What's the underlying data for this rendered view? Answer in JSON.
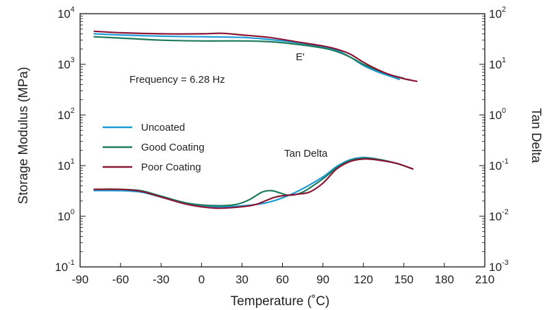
{
  "chart_data": {
    "type": "line",
    "xlabel": "Temperature (˚C)",
    "ylabel_left": "Storage Modulus (MPa)",
    "ylabel_right": "Tan Delta",
    "xlim": [
      -90,
      210
    ],
    "ylim_left": [
      0.1,
      10000
    ],
    "ylim_right": [
      0.001,
      100
    ],
    "y_scale": "log",
    "grid": false,
    "x_ticks": [
      "-90",
      "-60",
      "-30",
      "0",
      "30",
      "60",
      "90",
      "120",
      "150",
      "180",
      "210"
    ],
    "y_left_ticks": [
      {
        "base": "10",
        "exp": "4"
      },
      {
        "base": "10",
        "exp": "3"
      },
      {
        "base": "10",
        "exp": "2"
      },
      {
        "base": "10",
        "exp": "1"
      },
      {
        "base": "10",
        "exp": "0"
      },
      {
        "base": "10",
        "exp": "-1"
      }
    ],
    "y_right_ticks": [
      {
        "base": "10",
        "exp": "2"
      },
      {
        "base": "10",
        "exp": "1"
      },
      {
        "base": "10",
        "exp": "0"
      },
      {
        "base": "10",
        "exp": "-1"
      },
      {
        "base": "10",
        "exp": "-2"
      },
      {
        "base": "10",
        "exp": "-3"
      }
    ],
    "annotations": [
      "Frequency = 6.28 Hz",
      "E'",
      "Tan Delta"
    ],
    "legend": {
      "placement": "left-middle"
    },
    "series": [
      {
        "name": "Uncoated",
        "color": "#1a9ad6",
        "storage_modulus": {
          "x": [
            -80,
            -60,
            -30,
            0,
            30,
            50,
            70,
            90,
            100,
            110,
            120,
            130,
            140,
            147
          ],
          "y": [
            4000,
            3800,
            3600,
            3500,
            3400,
            3100,
            2700,
            2200,
            1900,
            1400,
            950,
            720,
            580,
            500
          ]
        },
        "tan_delta": {
          "x": [
            -80,
            -60,
            -45,
            -30,
            -10,
            10,
            30,
            50,
            70,
            90,
            100,
            110,
            120,
            130,
            145,
            157
          ],
          "y": [
            0.032,
            0.032,
            0.03,
            0.024,
            0.018,
            0.0155,
            0.016,
            0.019,
            0.03,
            0.06,
            0.095,
            0.13,
            0.145,
            0.135,
            0.11,
            0.085
          ]
        }
      },
      {
        "name": "Good Coating",
        "color": "#1a7a5a",
        "storage_modulus": {
          "x": [
            -80,
            -60,
            -30,
            0,
            30,
            50,
            70,
            90,
            100,
            110,
            120,
            130,
            140,
            150
          ],
          "y": [
            3500,
            3300,
            3000,
            2900,
            2900,
            2800,
            2500,
            2100,
            1800,
            1400,
            1000,
            770,
            620,
            530
          ]
        },
        "tan_delta": {
          "x": [
            -80,
            -60,
            -45,
            -30,
            -10,
            10,
            25,
            35,
            45,
            52,
            58,
            65,
            75,
            90,
            100,
            110,
            120,
            130,
            145,
            157
          ],
          "y": [
            0.034,
            0.034,
            0.032,
            0.025,
            0.018,
            0.0162,
            0.017,
            0.021,
            0.03,
            0.032,
            0.029,
            0.026,
            0.03,
            0.055,
            0.09,
            0.125,
            0.14,
            0.135,
            0.11,
            0.085
          ]
        }
      },
      {
        "name": "Poor Coating",
        "color": "#8a1432",
        "storage_modulus": {
          "x": [
            -80,
            -60,
            -30,
            0,
            15,
            30,
            50,
            70,
            90,
            100,
            110,
            120,
            130,
            140,
            150,
            160
          ],
          "y": [
            4500,
            4200,
            4000,
            4000,
            4100,
            3800,
            3400,
            2800,
            2300,
            2000,
            1600,
            1100,
            800,
            620,
            520,
            460
          ]
        },
        "tan_delta": {
          "x": [
            -80,
            -60,
            -45,
            -30,
            -10,
            10,
            25,
            40,
            55,
            70,
            80,
            90,
            100,
            110,
            120,
            130,
            145,
            157
          ],
          "y": [
            0.034,
            0.034,
            0.031,
            0.024,
            0.017,
            0.0145,
            0.015,
            0.017,
            0.024,
            0.027,
            0.03,
            0.045,
            0.085,
            0.12,
            0.135,
            0.13,
            0.11,
            0.085
          ]
        }
      }
    ]
  }
}
